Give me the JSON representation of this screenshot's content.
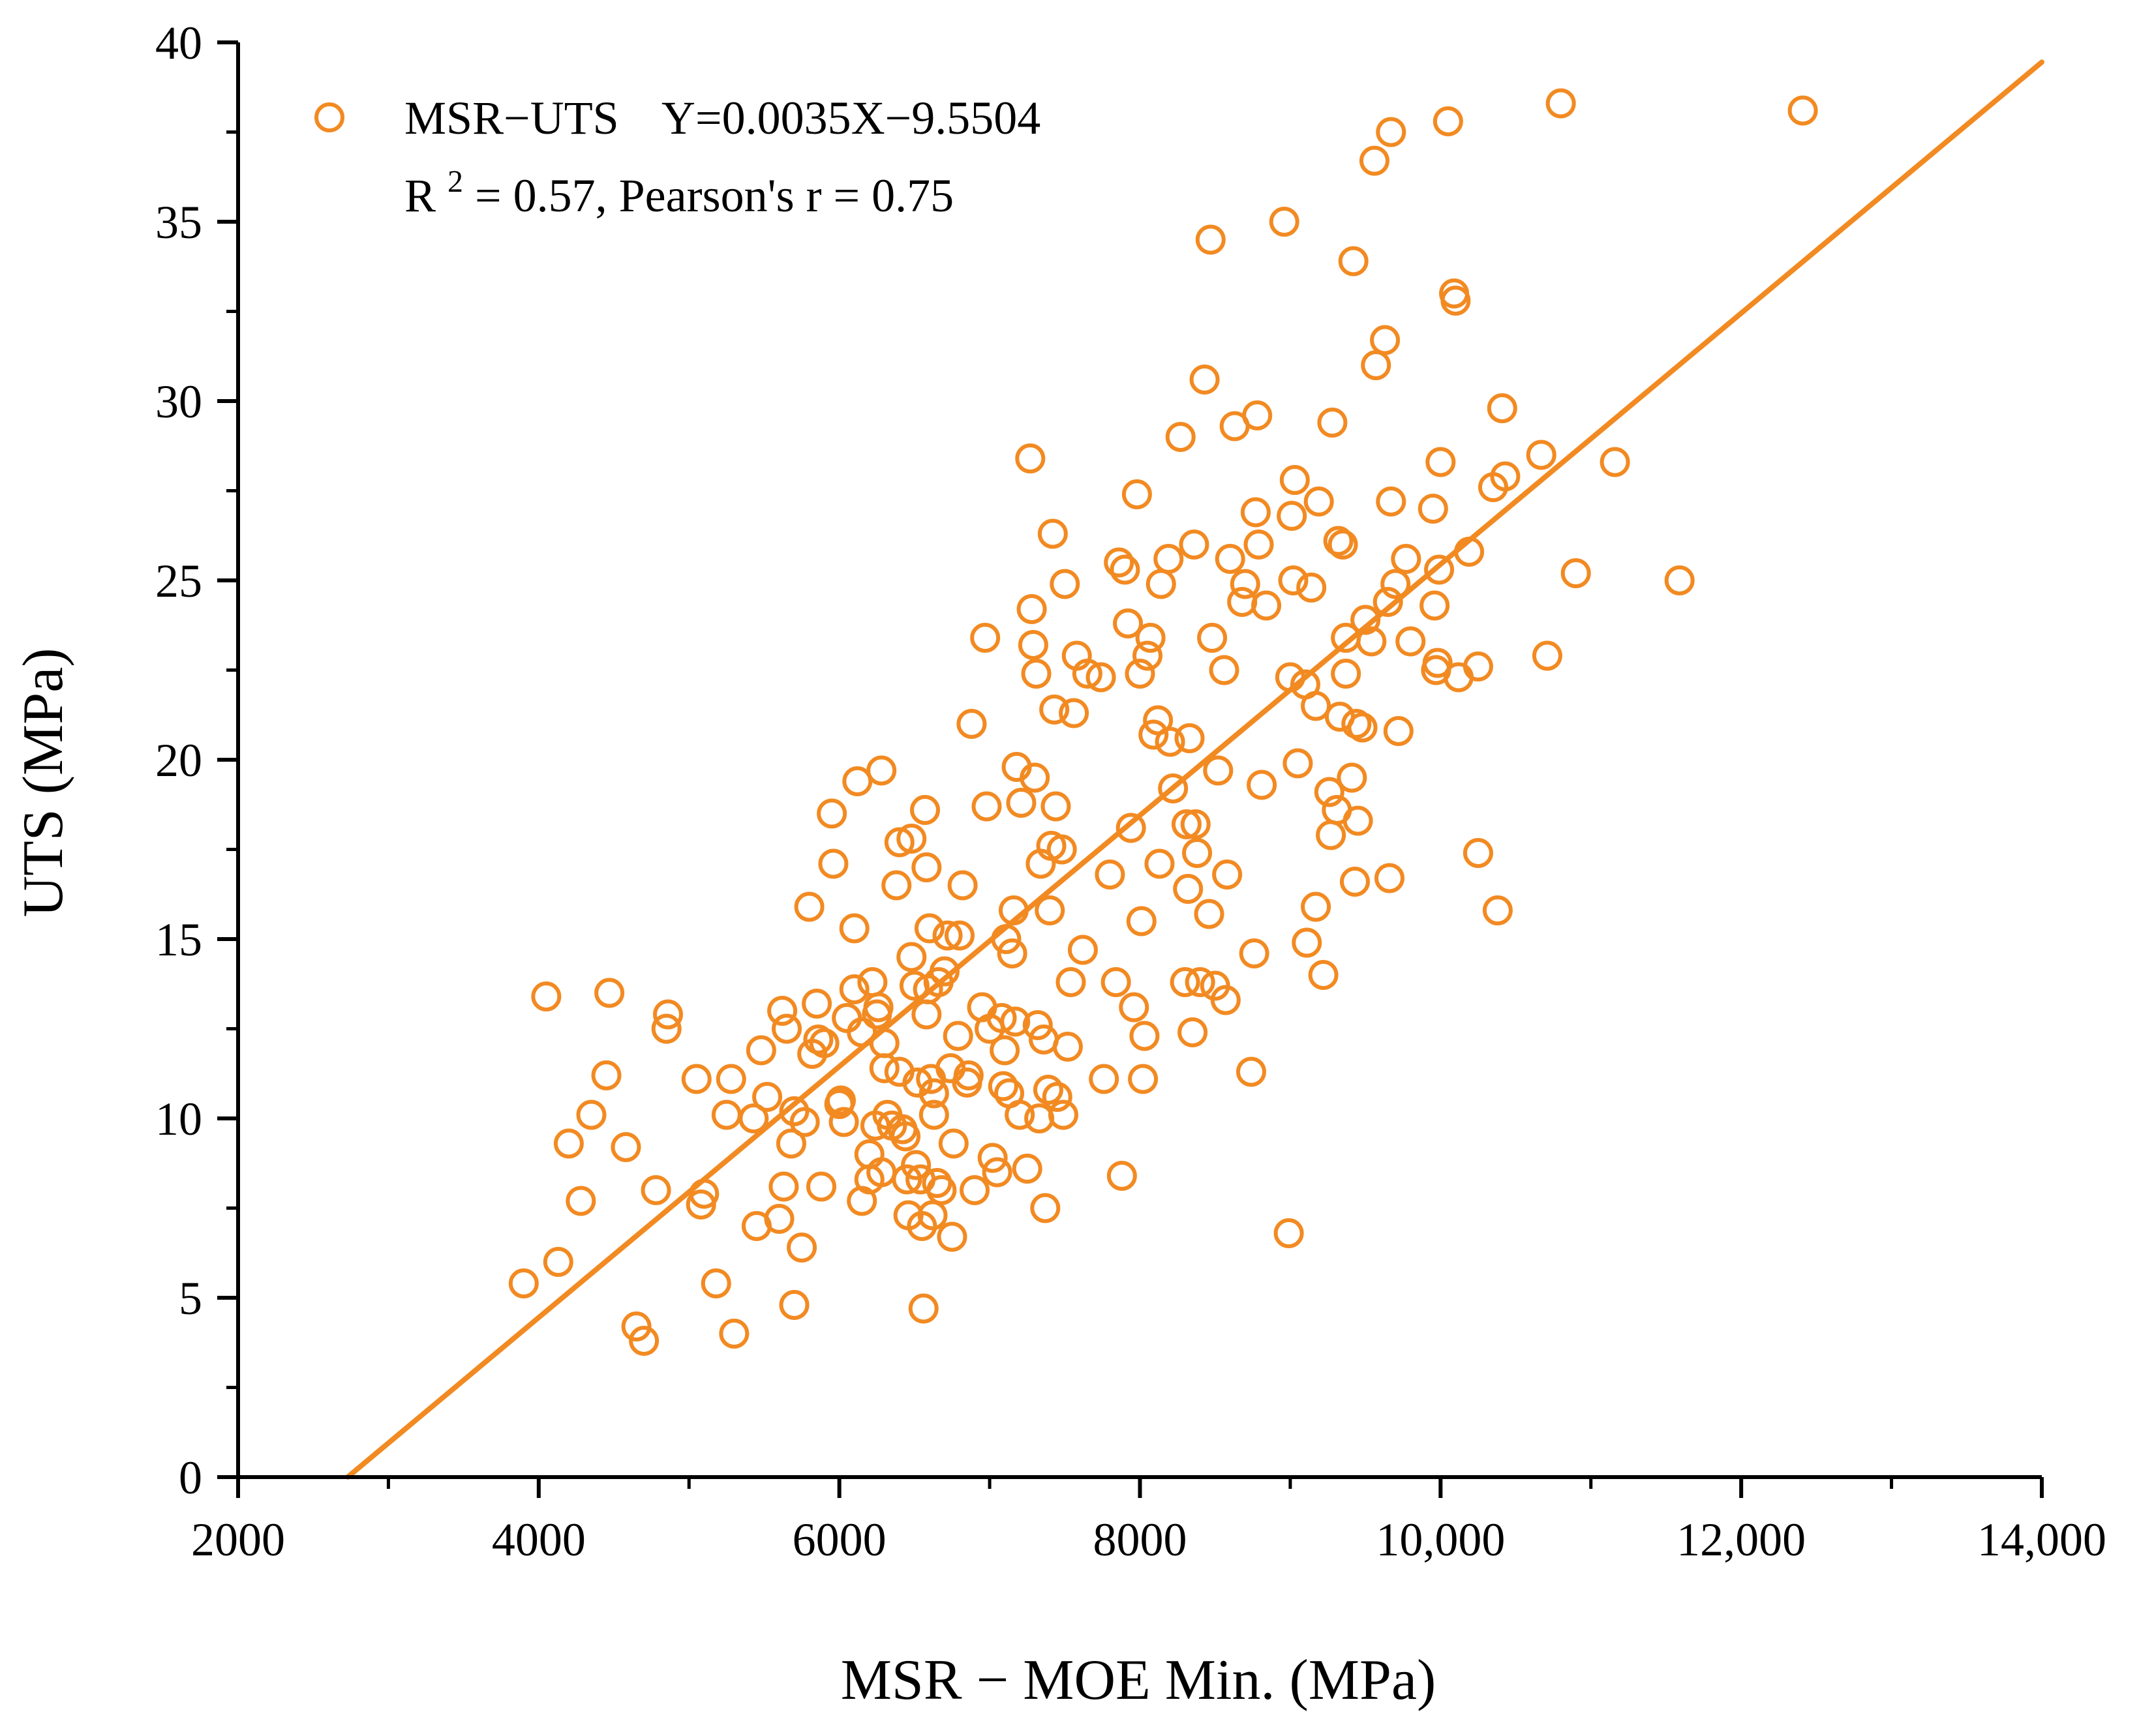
{
  "chart_data": {
    "type": "scatter",
    "xlabel": "MSR − MOE Min. (MPa)",
    "ylabel": "UTS (MPa)",
    "xlim": [
      2000,
      14000
    ],
    "ylim": [
      0,
      40
    ],
    "x_ticks": [
      2000,
      4000,
      6000,
      8000,
      10000,
      12000,
      14000
    ],
    "x_tick_labels": [
      "2000",
      "4000",
      "6000",
      "8000",
      "10,000",
      "12,000",
      "14,000"
    ],
    "y_ticks": [
      0,
      5,
      10,
      15,
      20,
      25,
      30,
      35,
      40
    ],
    "y_tick_labels": [
      "0",
      "5",
      "10",
      "15",
      "20",
      "25",
      "30",
      "35",
      "40"
    ],
    "grid": false,
    "legend_position": "top-left",
    "legend": {
      "series_label": "MSR−UTS",
      "equation": "Y=0.0035X−9.5504",
      "r2_prefix": "R",
      "r2_superscript": "2",
      "r2_rest": " = 0.57, Pearson's r = 0.75"
    },
    "colors": {
      "series": "#F28A22",
      "axis": "#000000"
    },
    "fit_line": {
      "slope": 0.0035,
      "intercept": -9.5504,
      "x_range": [
        2730,
        14000
      ]
    },
    "series": [
      {
        "name": "MSR−UTS",
        "points": [
          [
            3900,
            5.4
          ],
          [
            4050,
            13.4
          ],
          [
            4130,
            6.0
          ],
          [
            4200,
            9.3
          ],
          [
            4280,
            7.7
          ],
          [
            4350,
            10.1
          ],
          [
            4450,
            11.2
          ],
          [
            4470,
            13.5
          ],
          [
            4580,
            9.2
          ],
          [
            4650,
            4.2
          ],
          [
            4700,
            3.8
          ],
          [
            4780,
            8.0
          ],
          [
            4850,
            12.5
          ],
          [
            4860,
            12.9
          ],
          [
            5050,
            11.1
          ],
          [
            5080,
            7.6
          ],
          [
            5100,
            7.9
          ],
          [
            5180,
            5.4
          ],
          [
            5250,
            10.1
          ],
          [
            5280,
            11.1
          ],
          [
            5300,
            4.0
          ],
          [
            5430,
            10.0
          ],
          [
            5450,
            7.0
          ],
          [
            5480,
            11.9
          ],
          [
            5520,
            10.6
          ],
          [
            5600,
            7.2
          ],
          [
            5620,
            13.0
          ],
          [
            5630,
            8.1
          ],
          [
            5650,
            12.5
          ],
          [
            5680,
            9.3
          ],
          [
            5700,
            10.2
          ],
          [
            5700,
            4.8
          ],
          [
            5750,
            6.4
          ],
          [
            5770,
            9.9
          ],
          [
            5800,
            15.9
          ],
          [
            5820,
            11.8
          ],
          [
            5850,
            13.2
          ],
          [
            5860,
            12.2
          ],
          [
            5880,
            8.1
          ],
          [
            5900,
            12.1
          ],
          [
            5950,
            18.5
          ],
          [
            5960,
            17.1
          ],
          [
            6000,
            10.4
          ],
          [
            6010,
            10.5
          ],
          [
            6030,
            9.9
          ],
          [
            6050,
            12.8
          ],
          [
            6100,
            15.3
          ],
          [
            6100,
            13.6
          ],
          [
            6120,
            19.4
          ],
          [
            6150,
            12.4
          ],
          [
            6150,
            7.7
          ],
          [
            6200,
            8.3
          ],
          [
            6200,
            9.0
          ],
          [
            6220,
            13.8
          ],
          [
            6240,
            9.8
          ],
          [
            6250,
            12.9
          ],
          [
            6260,
            13.1
          ],
          [
            6280,
            8.5
          ],
          [
            6280,
            19.7
          ],
          [
            6300,
            12.1
          ],
          [
            6300,
            11.4
          ],
          [
            6320,
            10.1
          ],
          [
            6350,
            9.8
          ],
          [
            6380,
            16.5
          ],
          [
            6400,
            17.7
          ],
          [
            6400,
            11.3
          ],
          [
            6420,
            9.7
          ],
          [
            6440,
            9.5
          ],
          [
            6450,
            8.3
          ],
          [
            6460,
            7.3
          ],
          [
            6480,
            17.8
          ],
          [
            6480,
            14.5
          ],
          [
            6500,
            13.7
          ],
          [
            6510,
            8.7
          ],
          [
            6520,
            11.0
          ],
          [
            6540,
            8.3
          ],
          [
            6550,
            7.0
          ],
          [
            6560,
            4.7
          ],
          [
            6570,
            18.6
          ],
          [
            6580,
            17.0
          ],
          [
            6580,
            12.9
          ],
          [
            6590,
            13.6
          ],
          [
            6600,
            15.3
          ],
          [
            6610,
            11.1
          ],
          [
            6620,
            7.3
          ],
          [
            6630,
            10.7
          ],
          [
            6630,
            10.1
          ],
          [
            6650,
            8.2
          ],
          [
            6660,
            13.8
          ],
          [
            6680,
            8.0
          ],
          [
            6700,
            14.1
          ],
          [
            6720,
            15.1
          ],
          [
            6740,
            11.4
          ],
          [
            6750,
            6.7
          ],
          [
            6760,
            9.3
          ],
          [
            6790,
            12.3
          ],
          [
            6800,
            15.1
          ],
          [
            6820,
            16.5
          ],
          [
            6850,
            11.0
          ],
          [
            6860,
            11.2
          ],
          [
            6880,
            21.0
          ],
          [
            6900,
            8.0
          ],
          [
            6950,
            13.1
          ],
          [
            6970,
            23.4
          ],
          [
            6980,
            18.7
          ],
          [
            7000,
            12.5
          ],
          [
            7020,
            8.9
          ],
          [
            7050,
            8.5
          ],
          [
            7080,
            12.8
          ],
          [
            7090,
            10.9
          ],
          [
            7100,
            11.9
          ],
          [
            7110,
            15.0
          ],
          [
            7130,
            10.7
          ],
          [
            7150,
            14.6
          ],
          [
            7160,
            15.8
          ],
          [
            7170,
            12.7
          ],
          [
            7180,
            19.8
          ],
          [
            7200,
            10.1
          ],
          [
            7210,
            18.8
          ],
          [
            7250,
            8.6
          ],
          [
            7270,
            28.4
          ],
          [
            7280,
            24.2
          ],
          [
            7290,
            23.2
          ],
          [
            7300,
            19.5
          ],
          [
            7310,
            22.4
          ],
          [
            7320,
            12.6
          ],
          [
            7330,
            10.0
          ],
          [
            7340,
            17.1
          ],
          [
            7360,
            12.2
          ],
          [
            7370,
            7.5
          ],
          [
            7390,
            10.8
          ],
          [
            7400,
            15.8
          ],
          [
            7410,
            17.6
          ],
          [
            7420,
            26.3
          ],
          [
            7430,
            21.4
          ],
          [
            7440,
            18.7
          ],
          [
            7450,
            10.6
          ],
          [
            7480,
            17.5
          ],
          [
            7490,
            10.1
          ],
          [
            7500,
            24.9
          ],
          [
            7520,
            12.0
          ],
          [
            7540,
            13.8
          ],
          [
            7560,
            21.3
          ],
          [
            7580,
            22.9
          ],
          [
            7620,
            14.7
          ],
          [
            7650,
            22.4
          ],
          [
            7740,
            22.3
          ],
          [
            7760,
            11.1
          ],
          [
            7800,
            16.8
          ],
          [
            7840,
            13.8
          ],
          [
            7860,
            25.5
          ],
          [
            7880,
            8.4
          ],
          [
            7900,
            25.3
          ],
          [
            7920,
            23.8
          ],
          [
            7940,
            18.1
          ],
          [
            7960,
            13.1
          ],
          [
            7980,
            27.4
          ],
          [
            8000,
            22.4
          ],
          [
            8010,
            15.5
          ],
          [
            8020,
            11.1
          ],
          [
            8030,
            12.3
          ],
          [
            8050,
            22.9
          ],
          [
            8070,
            23.4
          ],
          [
            8090,
            20.7
          ],
          [
            8120,
            21.1
          ],
          [
            8130,
            17.1
          ],
          [
            8140,
            24.9
          ],
          [
            8190,
            25.6
          ],
          [
            8200,
            20.5
          ],
          [
            8220,
            19.2
          ],
          [
            8270,
            29.0
          ],
          [
            8300,
            13.8
          ],
          [
            8310,
            18.2
          ],
          [
            8320,
            16.4
          ],
          [
            8330,
            20.6
          ],
          [
            8350,
            12.4
          ],
          [
            8360,
            26.0
          ],
          [
            8370,
            18.2
          ],
          [
            8380,
            17.4
          ],
          [
            8400,
            13.8
          ],
          [
            8430,
            30.6
          ],
          [
            8460,
            15.7
          ],
          [
            8470,
            34.5
          ],
          [
            8480,
            23.4
          ],
          [
            8500,
            13.7
          ],
          [
            8520,
            19.7
          ],
          [
            8560,
            22.5
          ],
          [
            8570,
            13.3
          ],
          [
            8580,
            16.8
          ],
          [
            8600,
            25.6
          ],
          [
            8630,
            29.3
          ],
          [
            8680,
            24.4
          ],
          [
            8700,
            24.9
          ],
          [
            8740,
            11.3
          ],
          [
            8760,
            14.6
          ],
          [
            8770,
            26.9
          ],
          [
            8780,
            29.6
          ],
          [
            8790,
            26.0
          ],
          [
            8810,
            19.3
          ],
          [
            8840,
            24.3
          ],
          [
            8960,
            35.0
          ],
          [
            8990,
            6.8
          ],
          [
            9000,
            22.3
          ],
          [
            9010,
            26.8
          ],
          [
            9020,
            25.0
          ],
          [
            9030,
            27.8
          ],
          [
            9050,
            19.9
          ],
          [
            9100,
            22.1
          ],
          [
            9110,
            14.9
          ],
          [
            9140,
            24.8
          ],
          [
            9170,
            15.9
          ],
          [
            9170,
            21.5
          ],
          [
            9190,
            27.2
          ],
          [
            9220,
            14.0
          ],
          [
            9260,
            19.1
          ],
          [
            9270,
            17.9
          ],
          [
            9280,
            29.4
          ],
          [
            9310,
            18.6
          ],
          [
            9320,
            26.1
          ],
          [
            9330,
            21.2
          ],
          [
            9350,
            26.0
          ],
          [
            9370,
            23.4
          ],
          [
            9370,
            22.4
          ],
          [
            9410,
            19.5
          ],
          [
            9420,
            33.9
          ],
          [
            9430,
            16.6
          ],
          [
            9440,
            21.0
          ],
          [
            9450,
            18.3
          ],
          [
            9480,
            20.9
          ],
          [
            9500,
            23.9
          ],
          [
            9540,
            23.3
          ],
          [
            9560,
            36.7
          ],
          [
            9570,
            31.0
          ],
          [
            9630,
            31.7
          ],
          [
            9650,
            24.4
          ],
          [
            9660,
            16.7
          ],
          [
            9670,
            27.2
          ],
          [
            9670,
            37.5
          ],
          [
            9700,
            24.9
          ],
          [
            9720,
            20.8
          ],
          [
            9770,
            25.6
          ],
          [
            9800,
            23.3
          ],
          [
            9950,
            27.0
          ],
          [
            9960,
            24.3
          ],
          [
            9970,
            22.5
          ],
          [
            9980,
            22.7
          ],
          [
            9990,
            25.3
          ],
          [
            10000,
            28.3
          ],
          [
            10050,
            37.8
          ],
          [
            10090,
            33.0
          ],
          [
            10100,
            32.8
          ],
          [
            10120,
            22.3
          ],
          [
            10190,
            25.8
          ],
          [
            10250,
            22.6
          ],
          [
            10250,
            17.4
          ],
          [
            10350,
            27.6
          ],
          [
            10380,
            15.8
          ],
          [
            10410,
            29.8
          ],
          [
            10430,
            27.9
          ],
          [
            10670,
            28.5
          ],
          [
            10710,
            22.9
          ],
          [
            10800,
            38.3
          ],
          [
            10900,
            25.2
          ],
          [
            11160,
            28.3
          ],
          [
            11590,
            25.0
          ],
          [
            12410,
            38.1
          ]
        ]
      }
    ]
  }
}
